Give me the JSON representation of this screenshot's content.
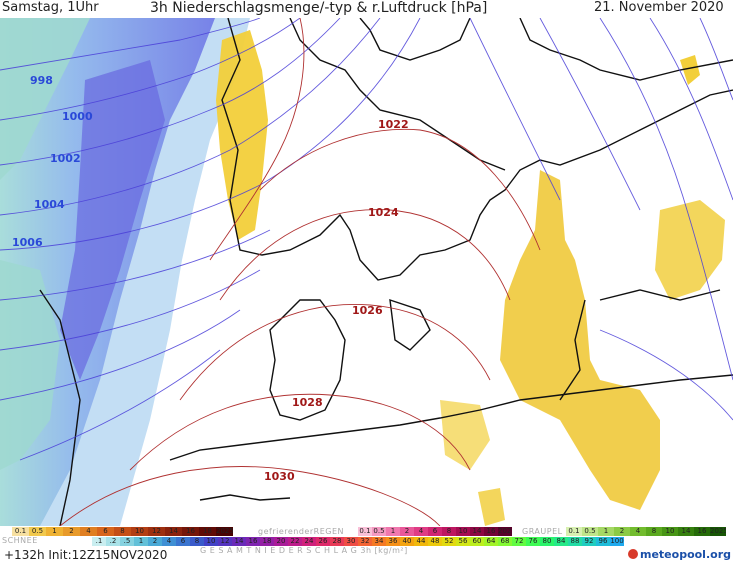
{
  "header": {
    "day_time": "Samstag, 1Uhr",
    "title": "3h Niederschlagsmenge/-typ & r.Luftdruck [hPa]",
    "date": "21. November 2020"
  },
  "isobars": {
    "blue_labels": [
      "998",
      "1000",
      "1002",
      "1004",
      "1006"
    ],
    "red_labels": [
      "1022",
      "1024",
      "1026",
      "1028",
      "1030"
    ]
  },
  "legend": {
    "snow_label": "SCHNEE",
    "freezing_rain_label": "gefrierenderREGEN",
    "graupel_label": "GRAUPEL",
    "total_label": "G E S A M T N I E D E R S C H L A G   3h   [kg/m²]",
    "rain_scale": [
      "0.1",
      "0.5",
      "1",
      "2",
      "4",
      "6",
      "8",
      "10",
      "12",
      "14",
      "16",
      "18",
      "2025+"
    ],
    "freezing_scale": [
      "0.1",
      "0.5",
      "1",
      "2",
      "4",
      "6",
      "8",
      "10",
      "14",
      "16",
      "2025+"
    ],
    "graupel_scale": [
      "0.1",
      "0.5",
      "1",
      "2",
      "4",
      "8",
      "10",
      "14",
      "16",
      "2025+"
    ],
    "snow_scale": [
      ".1",
      ".2",
      ".5",
      "1",
      "2",
      "4",
      "6",
      "8",
      "10",
      "12",
      "14",
      "16",
      "18",
      "20",
      "22",
      "24",
      "26",
      "28",
      "30",
      "32",
      "34",
      "36",
      "40",
      "44",
      "48",
      "52",
      "56",
      "60",
      "64",
      "68",
      "72",
      "76",
      "80",
      "84",
      "88",
      "92",
      "96",
      "100"
    ],
    "colors": {
      "rain": [
        "#f7e0a0",
        "#f2c94d",
        "#efb233",
        "#e89a2a",
        "#e07f22",
        "#d8651c",
        "#c54f17",
        "#b23e14",
        "#9e2f10",
        "#8a220d",
        "#751609",
        "#600b06",
        "#4a0303"
      ],
      "freezing": [
        "#f9c0d8",
        "#f59ac2",
        "#f078ae",
        "#e95899",
        "#df3c85",
        "#d02572",
        "#bd1761",
        "#a50d52",
        "#8c0743",
        "#720336",
        "#58002a"
      ],
      "graupel": [
        "#d7f0b0",
        "#bfe58a",
        "#a5d865",
        "#8bca45",
        "#72bc2e",
        "#5ba91f",
        "#479515",
        "#35800e",
        "#256b08",
        "#175605"
      ],
      "snow": [
        "#c9eef0",
        "#a9e2e8",
        "#86d2e0",
        "#63c0d8",
        "#4aa9d6",
        "#3f8fd4",
        "#3a75d0",
        "#3a5bcb",
        "#4242c6",
        "#5535c0",
        "#6a2bb9",
        "#7f25b0",
        "#9420a5",
        "#a91d99",
        "#bd1d8b",
        "#cf217b",
        "#de2a6a",
        "#e83a57",
        "#ef4e45",
        "#f36433",
        "#f57a24",
        "#f59018",
        "#f4a410",
        "#f1b80c",
        "#ecca0c",
        "#e2da10",
        "#d2e616",
        "#bcef1e",
        "#a2f528",
        "#84f934",
        "#62fb42",
        "#3efb54",
        "#2bf46c",
        "#25ea88",
        "#22dca5",
        "#20cdc0",
        "#1ebcd9",
        "#1faaef"
      ]
    }
  },
  "footer": {
    "run": "+132h  Init:12Z15NOV2020",
    "brand": "meteopool.org"
  }
}
